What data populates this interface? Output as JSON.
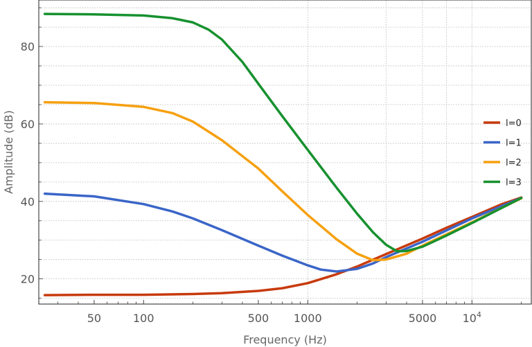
{
  "chart_data": {
    "type": "line",
    "xlabel": "Frequency (Hz)",
    "ylabel": "Amplitude (dB)",
    "x_scale": "log",
    "xlim": [
      23,
      23000
    ],
    "ylim": [
      13.5,
      92
    ],
    "grid": true,
    "legend_position": "right",
    "x_ticks": [
      {
        "value": 50,
        "label": "50"
      },
      {
        "value": 100,
        "label": "100"
      },
      {
        "value": 500,
        "label": "500"
      },
      {
        "value": 1000,
        "label": "1000"
      },
      {
        "value": 5000,
        "label": "5000"
      },
      {
        "value": 10000,
        "label": "10",
        "sup": "4"
      }
    ],
    "y_ticks": [
      {
        "value": 20,
        "label": "20"
      },
      {
        "value": 40,
        "label": "40"
      },
      {
        "value": 60,
        "label": "60"
      },
      {
        "value": 80,
        "label": "80"
      }
    ],
    "series": [
      {
        "name": "l=0",
        "color": "#c73a0c",
        "x": [
          25,
          50,
          100,
          200,
          300,
          500,
          700,
          1000,
          1500,
          2000,
          3000,
          5000,
          7000,
          10000,
          15000,
          20000
        ],
        "y": [
          15.8,
          15.9,
          15.9,
          16.1,
          16.3,
          16.9,
          17.6,
          18.9,
          21.2,
          23.2,
          26.4,
          30.4,
          33.2,
          36.0,
          39.2,
          41.0
        ]
      },
      {
        "name": "l=1",
        "color": "#3a65c8",
        "x": [
          25,
          50,
          100,
          150,
          200,
          300,
          500,
          700,
          1000,
          1200,
          1500,
          2000,
          2500,
          3000,
          5000,
          10000,
          20000
        ],
        "y": [
          42.0,
          41.3,
          39.3,
          37.4,
          35.6,
          32.6,
          28.6,
          26.0,
          23.5,
          22.4,
          21.9,
          22.6,
          24.0,
          25.6,
          29.6,
          35.6,
          40.9
        ]
      },
      {
        "name": "l=2",
        "color": "#f6a010",
        "x": [
          25,
          50,
          100,
          150,
          200,
          300,
          500,
          700,
          1000,
          1500,
          2000,
          2500,
          3000,
          4000,
          5000,
          10000,
          20000
        ],
        "y": [
          65.6,
          65.4,
          64.4,
          62.8,
          60.6,
          55.8,
          48.5,
          42.6,
          36.5,
          30.2,
          26.5,
          24.8,
          25.0,
          26.5,
          28.6,
          34.6,
          40.8
        ]
      },
      {
        "name": "l=3",
        "color": "#17912f",
        "x": [
          25,
          50,
          100,
          150,
          200,
          250,
          300,
          400,
          500,
          700,
          1000,
          1500,
          2000,
          2500,
          3000,
          3500,
          4000,
          5000,
          7000,
          10000,
          20000
        ],
        "y": [
          88.4,
          88.3,
          88.0,
          87.3,
          86.2,
          84.3,
          81.8,
          76.0,
          70.4,
          62.0,
          53.3,
          43.5,
          36.8,
          32.0,
          28.8,
          27.1,
          27.2,
          28.3,
          31.2,
          34.4,
          40.9
        ]
      }
    ]
  }
}
